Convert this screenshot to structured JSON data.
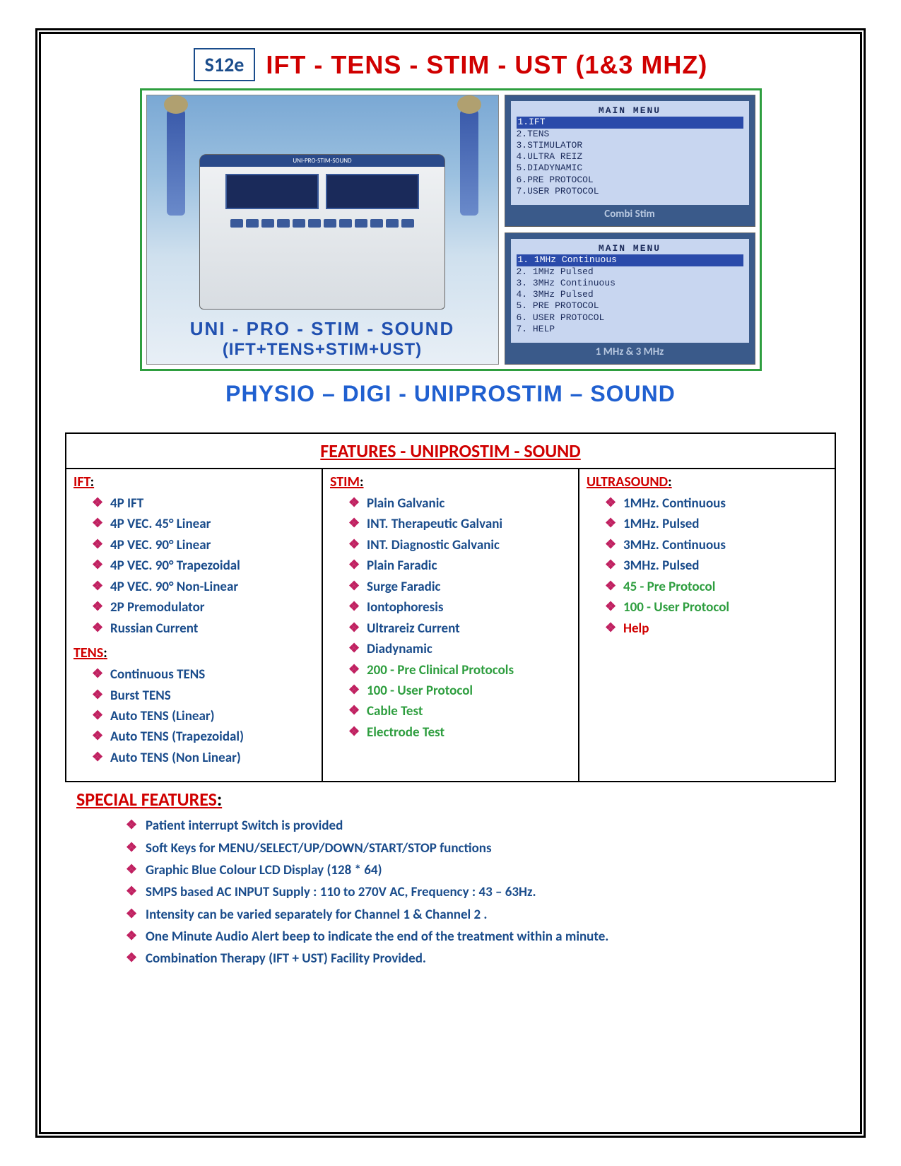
{
  "header": {
    "code": "S12e",
    "title": "IFT - TENS - STIM - UST (1&3 MHZ)"
  },
  "image_panel": {
    "device_label": "UNI-PRO-STIM-SOUND",
    "caption1": "UNI - PRO - STIM - SOUND",
    "caption2": "(IFT+TENS+STIM+UST)",
    "lcd1": {
      "title": "MAIN MENU",
      "items": [
        "1.IFT",
        "2.TENS",
        "3.STIMULATOR",
        "4.ULTRA REIZ",
        "5.DIADYNAMIC",
        "6.PRE PROTOCOL",
        "7.USER PROTOCOL"
      ],
      "highlight_index": 0,
      "caption": "Combi Stim"
    },
    "lcd2": {
      "title": "MAIN MENU",
      "items": [
        "1. 1MHz Continuous",
        "2. 1MHz Pulsed",
        "3. 3MHz Continuous",
        "4. 3MHz Pulsed",
        "5. PRE PROTOCOL",
        "6. USER PROTOCOL",
        "7. HELP"
      ],
      "highlight_index": 0,
      "caption": "1 MHz & 3 MHz"
    }
  },
  "subtitle": "PHYSIO – DIGI - UNIPROSTIM – SOUND",
  "features": {
    "header": "FEATURES - UNIPROSTIM - SOUND",
    "col1": [
      {
        "heading": "IFT",
        "items": [
          {
            "t": "4P  IFT"
          },
          {
            "t": "4P VEC. 45° Linear"
          },
          {
            "t": "4P VEC. 90° Linear"
          },
          {
            "t": "4P VEC. 90°  Trapezoidal"
          },
          {
            "t": "4P VEC. 90°  Non-Linear"
          },
          {
            "t": " 2P Premodulator"
          },
          {
            "t": "Russian Current"
          }
        ]
      },
      {
        "heading": "TENS",
        "items": [
          {
            "t": "Continuous TENS"
          },
          {
            "t": "Burst TENS"
          },
          {
            "t": "Auto TENS   (Linear)"
          },
          {
            "t": "Auto TENS  (Trapezoidal)"
          },
          {
            "t": "Auto TENS   (Non Linear)"
          }
        ]
      }
    ],
    "col2": [
      {
        "heading": "STIM",
        "items": [
          {
            "t": "Plain Galvanic"
          },
          {
            "t": "INT.  Therapeutic Galvani"
          },
          {
            "t": "INT.  Diagnostic Galvanic"
          },
          {
            "t": "Plain Faradic"
          },
          {
            "t": "Surge Faradic"
          },
          {
            "t": "Iontophoresis"
          },
          {
            "t": "Ultrareiz Current"
          },
          {
            "t": "Diadynamic"
          },
          {
            "t": "200 - Pre Clinical Protocols",
            "c": "green"
          },
          {
            "t": "100 - User Protocol",
            "c": "green"
          },
          {
            "t": "Cable Test",
            "c": "green"
          },
          {
            "t": "Electrode Test",
            "c": "green"
          }
        ]
      }
    ],
    "col3": [
      {
        "heading": "ULTRASOUND",
        "items": [
          {
            "t": "1MHz. Continuous"
          },
          {
            "t": "1MHz. Pulsed"
          },
          {
            "t": "3MHz. Continuous"
          },
          {
            "t": "3MHz. Pulsed"
          },
          {
            "t": "45 - Pre Protocol",
            "c": "green"
          },
          {
            "t": "100 - User Protocol",
            "c": "green"
          },
          {
            "t": "Help",
            "c": "red"
          }
        ]
      }
    ]
  },
  "special": {
    "heading": "SPECIAL FEATURES",
    "items": [
      "Patient interrupt Switch is provided",
      "Soft Keys for MENU/SELECT/UP/DOWN/START/STOP  functions",
      "Graphic Blue  Colour  LCD Display (128 * 64)",
      "SMPS based AC INPUT Supply : 110 to 270V AC,  Frequency : 43 – 63Hz.",
      "Intensity can be varied separately for Channel 1 & Channel 2 .",
      "One Minute Audio  Alert  beep  to indicate the end of the treatment within a minute.",
      "Combination Therapy (IFT + UST) Facility Provided."
    ]
  },
  "colors": {
    "red": "#d00000",
    "blue": "#1a4c8b",
    "bright_blue": "#2060d0",
    "green": "#2e9e3f",
    "bullet": "#c02060"
  }
}
